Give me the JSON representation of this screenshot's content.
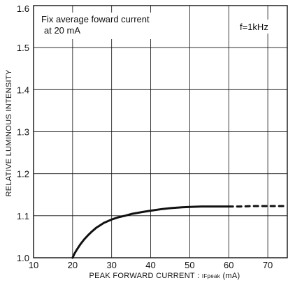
{
  "chart_data": {
    "type": "line",
    "title": "",
    "xlabel": "PEAK FORWARD CURRENT : ",
    "xlabel_symbol": "IFpeak",
    "xlabel_unit": " (mA)",
    "ylabel": "RELATIVE LUMINOUS INTENSITY",
    "xlim": [
      10,
      75
    ],
    "ylim": [
      1.0,
      1.6
    ],
    "x_ticks": [
      "10",
      "20",
      "30",
      "40",
      "50",
      "60",
      "70"
    ],
    "y_ticks": [
      "1.0",
      "1.1",
      "1.2",
      "1.3",
      "1.4",
      "1.5",
      "1.6"
    ],
    "grid": true,
    "annotations": {
      "condition_line1": "Fix average foward current",
      "condition_line2": "at 20 mA",
      "frequency": "f=1kHz"
    },
    "series": [
      {
        "style": "solid",
        "x": [
          20,
          20.5,
          21,
          22,
          23,
          24,
          25,
          26,
          27,
          28,
          30,
          32,
          33.5,
          35,
          38,
          40,
          43,
          45,
          48,
          50,
          53,
          55,
          58,
          60
        ],
        "y": [
          1.0,
          1.01,
          1.018,
          1.032,
          1.044,
          1.054,
          1.063,
          1.071,
          1.077,
          1.083,
          1.091,
          1.097,
          1.1,
          1.104,
          1.109,
          1.112,
          1.116,
          1.118,
          1.12,
          1.121,
          1.122,
          1.122,
          1.122,
          1.122
        ]
      },
      {
        "style": "dashed",
        "x": [
          60,
          63,
          66,
          70,
          75
        ],
        "y": [
          1.122,
          1.122,
          1.123,
          1.123,
          1.123
        ]
      }
    ],
    "colors": {
      "line": "#111111",
      "grid": "#111111"
    }
  }
}
